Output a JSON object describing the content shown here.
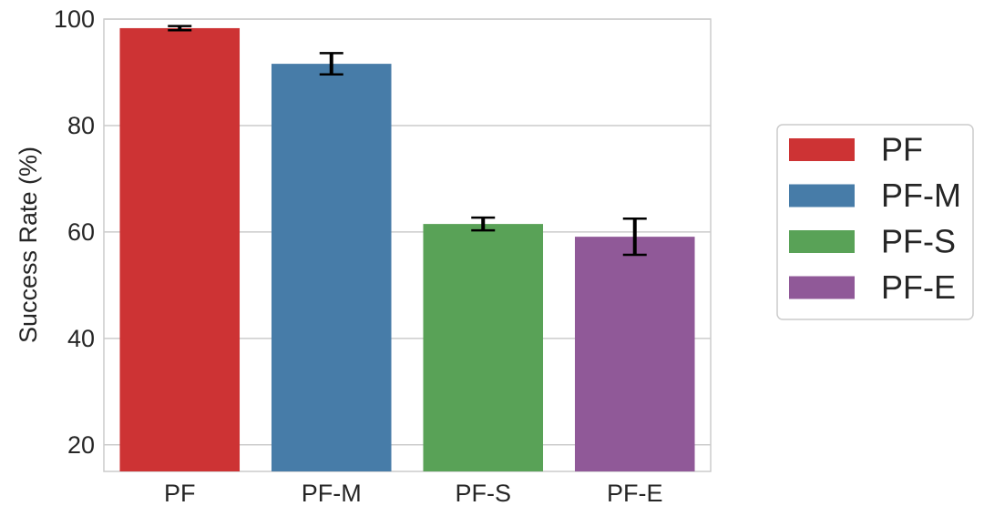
{
  "chart_data": {
    "type": "bar",
    "title": "",
    "xlabel": "",
    "ylabel": "Success Rate (%)",
    "categories": [
      "PF",
      "PF-M",
      "PF-S",
      "PF-E"
    ],
    "values": [
      98.3,
      91.6,
      61.5,
      59.1
    ],
    "error": [
      0.4,
      2.0,
      1.2,
      3.4
    ],
    "colors": [
      "#cd3334",
      "#477ca8",
      "#59a257",
      "#905998"
    ],
    "ylim": [
      15,
      100
    ],
    "yticks": [
      20,
      40,
      60,
      80,
      100
    ],
    "grid": "horizontal",
    "legend": {
      "placement": "right",
      "entries": [
        "PF",
        "PF-M",
        "PF-S",
        "PF-E"
      ]
    }
  }
}
